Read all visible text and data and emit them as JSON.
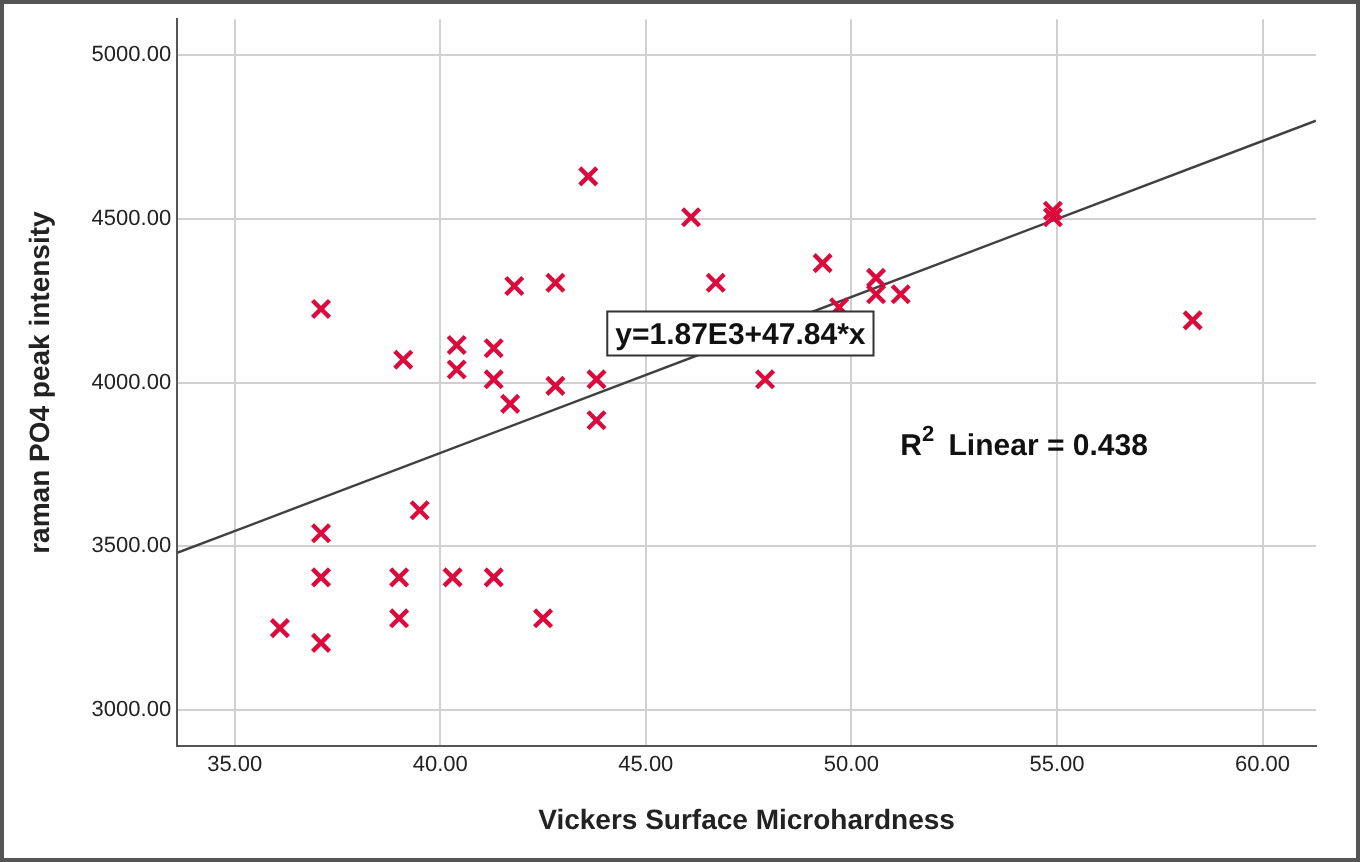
{
  "chart_data": {
    "type": "scatter",
    "xlabel": "Vickers Surface Microhardness",
    "ylabel": "raman PO4 peak intensity",
    "xlim": [
      33.6,
      61.3
    ],
    "xticks": [
      {
        "value": 35,
        "label": "35.00"
      },
      {
        "value": 40,
        "label": "40.00"
      },
      {
        "value": 45,
        "label": "45.00"
      },
      {
        "value": 50,
        "label": "50.00"
      },
      {
        "value": 55,
        "label": "55.00"
      },
      {
        "value": 60,
        "label": "60.00"
      }
    ],
    "ylim": [
      2890,
      5110
    ],
    "yticks": [
      {
        "value": 3000,
        "label": "3000.00"
      },
      {
        "value": 3500,
        "label": "3500.00"
      },
      {
        "value": 4000,
        "label": "4000.00"
      },
      {
        "value": 4500,
        "label": "4500.00"
      },
      {
        "value": 5000,
        "label": "5000.00"
      }
    ],
    "grid": true,
    "legend": false,
    "series": [
      {
        "type": "scatter",
        "color": "#dc0a3c",
        "marker": "cross",
        "x": [
          43.6,
          46.1,
          41.8,
          42.8,
          46.7,
          37.1,
          40.4,
          41.3,
          39.1,
          40.4,
          41.3,
          42.8,
          43.8,
          41.7,
          43.8,
          47.9,
          39.5,
          37.1,
          37.1,
          39.0,
          40.3,
          41.3,
          39.0,
          42.5,
          36.1,
          37.1,
          49.3,
          50.6,
          50.6,
          51.2,
          49.7,
          54.9,
          54.9,
          58.3
        ],
        "values": [
          4630,
          4505,
          4295,
          4305,
          4305,
          4225,
          4115,
          4105,
          4070,
          4040,
          4010,
          3990,
          4010,
          3935,
          3885,
          4010,
          3610,
          3540,
          3405,
          3405,
          3405,
          3405,
          3280,
          3280,
          3250,
          3205,
          4365,
          4320,
          4270,
          4270,
          4230,
          4525,
          4505,
          4190
        ]
      },
      {
        "type": "line",
        "color": "#404040",
        "marker": "none",
        "x": [
          33.6,
          61.3
        ],
        "values": [
          3480,
          4800
        ]
      }
    ],
    "annotations": [
      {
        "text": "y=1.87E3+47.84*x",
        "x": 47.3,
        "y": 4150
      },
      "R$^{2}$ Linear = 0.438"
    ]
  }
}
